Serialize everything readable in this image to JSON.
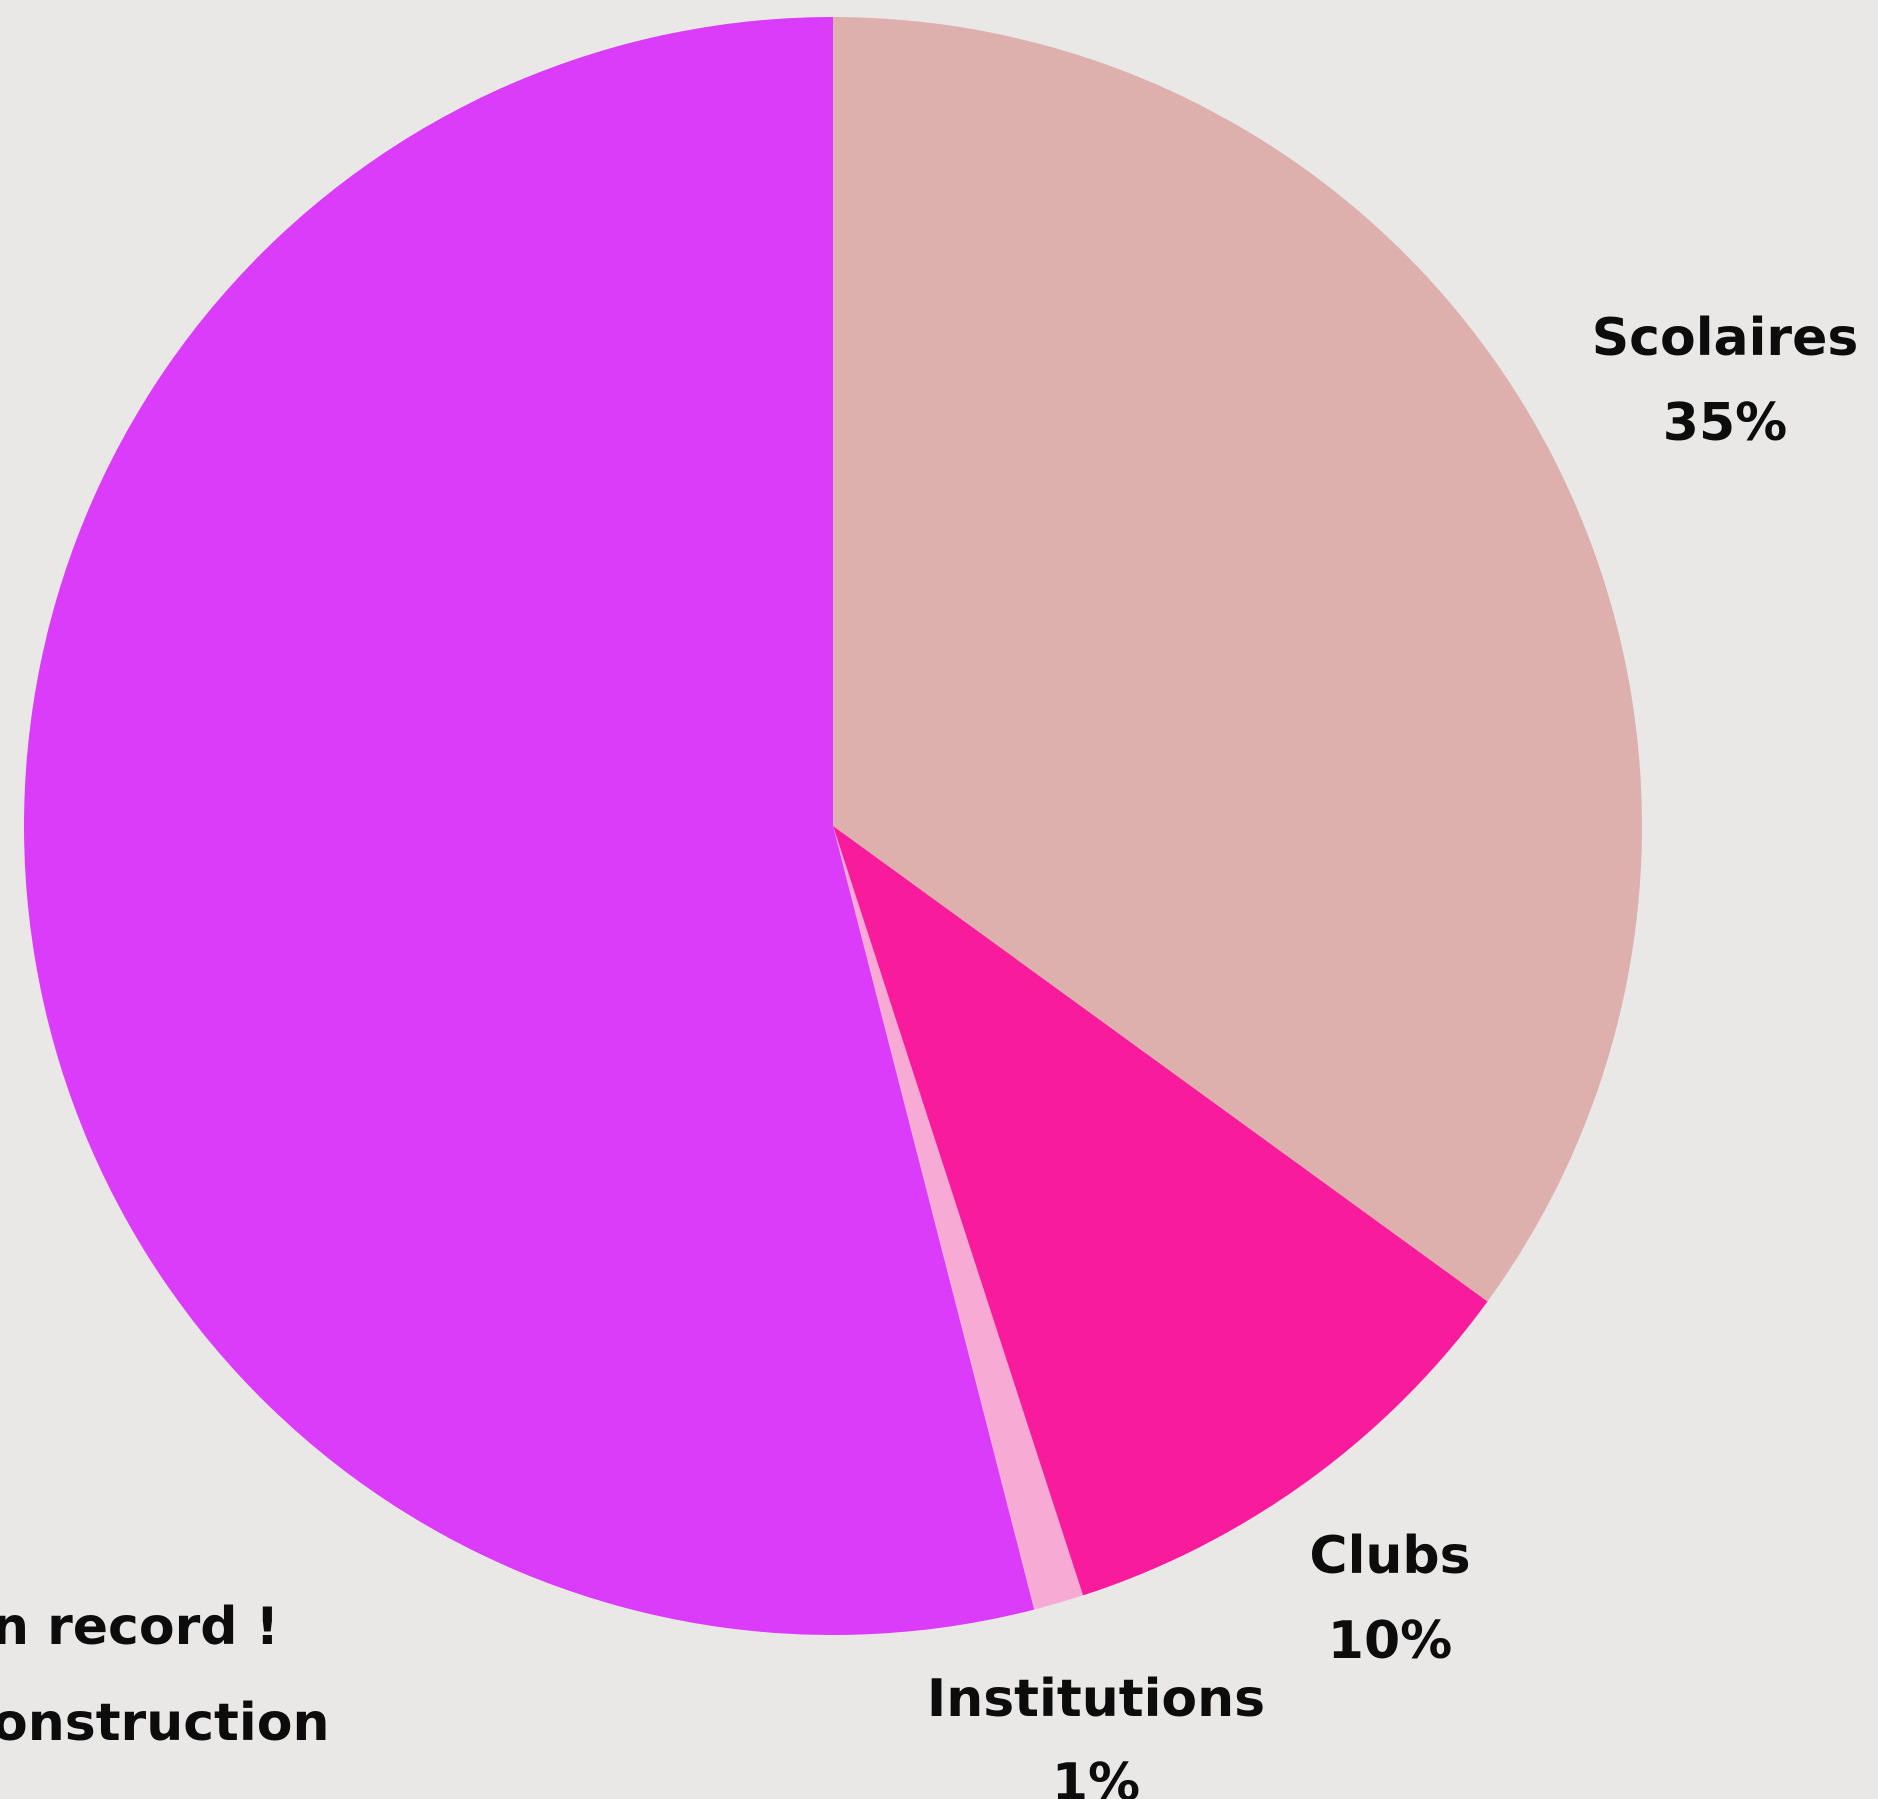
{
  "chart_data": {
    "type": "pie",
    "start_angle_deg": 0,
    "direction": "clockwise",
    "slices": [
      {
        "label": "Scolaires",
        "value": 35,
        "value_label": "35%",
        "color": "#ddb0ae",
        "show_label": true
      },
      {
        "label": "Clubs",
        "value": 10,
        "value_label": "10%",
        "color": "#f81c9d",
        "show_label": true
      },
      {
        "label": "Institutions",
        "value": 1,
        "value_label": "1%",
        "color": "#f7aad4",
        "show_label": true
      },
      {
        "label": "",
        "value": 54,
        "value_label": "",
        "color": "#da3cf9",
        "show_label": false
      }
    ]
  },
  "annotation": {
    "lines": [
      "n record !",
      "onstruction"
    ]
  }
}
